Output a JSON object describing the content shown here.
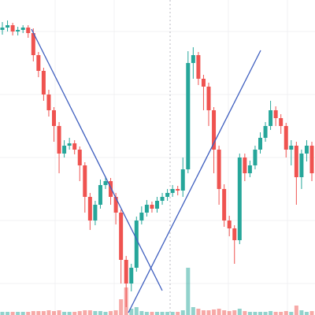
{
  "chart_data": {
    "type": "candlestick",
    "ylim": [
      0,
      400
    ],
    "volume_lim": [
      0,
      400
    ],
    "up_color": "#26a69a",
    "down_color": "#ef5350",
    "open": [
      362,
      365,
      368,
      360,
      362,
      365,
      358,
      330,
      310,
      280,
      260,
      240,
      205,
      215,
      218,
      210,
      190,
      150,
      120,
      140,
      165,
      170,
      150,
      130,
      70,
      40,
      60,
      120,
      130,
      140,
      135,
      145,
      150,
      155,
      160,
      158,
      185,
      320,
      330,
      300,
      290,
      260,
      210,
      160,
      120,
      110,
      95,
      200,
      180,
      190,
      210,
      225,
      240,
      260,
      250,
      240,
      210,
      215,
      175,
      205,
      215
    ],
    "high": [
      372,
      374,
      371,
      366,
      368,
      368,
      364,
      334,
      314,
      286,
      264,
      245,
      222,
      225,
      222,
      214,
      194,
      155,
      145,
      172,
      176,
      174,
      155,
      134,
      75,
      65,
      125,
      138,
      146,
      144,
      150,
      155,
      160,
      165,
      164,
      200,
      335,
      340,
      334,
      305,
      295,
      264,
      215,
      166,
      126,
      114,
      205,
      205,
      196,
      215,
      232,
      245,
      272,
      265,
      255,
      244,
      222,
      220,
      210,
      222,
      220
    ],
    "low": [
      356,
      360,
      355,
      355,
      358,
      352,
      322,
      302,
      272,
      252,
      220,
      180,
      200,
      210,
      204,
      170,
      130,
      108,
      114,
      135,
      160,
      140,
      115,
      40,
      10,
      30,
      55,
      115,
      125,
      130,
      130,
      140,
      145,
      150,
      152,
      150,
      180,
      300,
      292,
      260,
      240,
      180,
      140,
      112,
      100,
      65,
      90,
      170,
      175,
      185,
      205,
      220,
      235,
      240,
      230,
      200,
      190,
      140,
      160,
      195,
      170
    ],
    "close": [
      365,
      368,
      360,
      362,
      365,
      358,
      330,
      310,
      280,
      260,
      240,
      205,
      215,
      218,
      210,
      190,
      150,
      120,
      140,
      165,
      170,
      150,
      130,
      70,
      40,
      60,
      120,
      130,
      140,
      135,
      145,
      150,
      155,
      160,
      158,
      185,
      320,
      330,
      300,
      290,
      260,
      210,
      160,
      120,
      110,
      95,
      200,
      180,
      190,
      210,
      225,
      240,
      260,
      250,
      240,
      210,
      215,
      175,
      205,
      215,
      180
    ],
    "volume": [
      4,
      4,
      4,
      4,
      4,
      4,
      5,
      5,
      5,
      6,
      5,
      6,
      4,
      4,
      4,
      5,
      6,
      6,
      5,
      5,
      4,
      5,
      6,
      20,
      35,
      8,
      10,
      5,
      4,
      4,
      4,
      4,
      4,
      4,
      4,
      6,
      60,
      10,
      8,
      6,
      6,
      7,
      8,
      6,
      5,
      6,
      8,
      5,
      4,
      4,
      4,
      4,
      5,
      4,
      4,
      5,
      4,
      12,
      6,
      4,
      5
    ]
  }
}
